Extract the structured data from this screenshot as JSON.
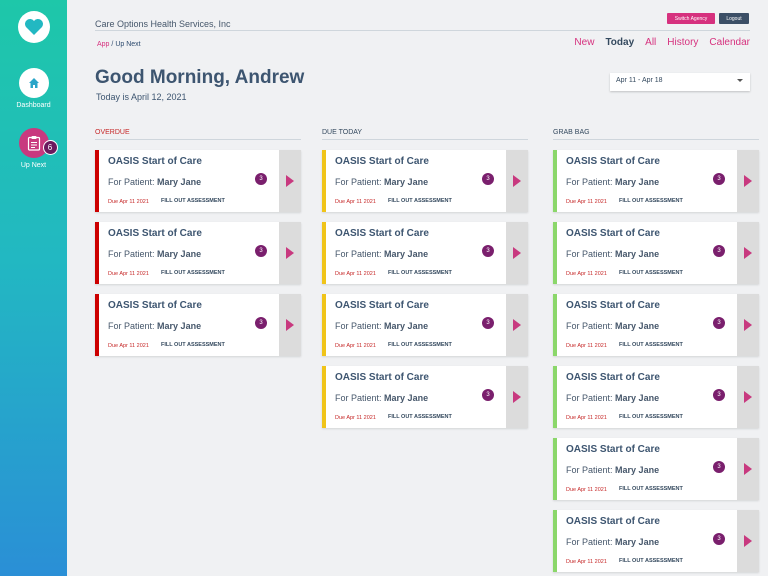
{
  "sidebar": {
    "dashboard_label": "Dashboard",
    "upnext_label": "Up Next",
    "upnext_badge": "6"
  },
  "header": {
    "agency": "Care Options Health Services, Inc",
    "switch_label": "Switch Agency",
    "logout_label": "Logout"
  },
  "breadcrumb": {
    "app": "App",
    "sep": " / ",
    "current": "Up Next"
  },
  "tabs": [
    "New",
    "Today",
    "All",
    "History",
    "Calendar"
  ],
  "active_tab": "Today",
  "greeting": "Good Morning, Andrew",
  "today_text": "Today is April 12, 2021",
  "date_range": "Apr 11 - Apr 18",
  "columns": [
    {
      "title": "OVERDUE",
      "color": "red",
      "count": 3
    },
    {
      "title": "DUE TODAY",
      "color": "yellow",
      "count": 4
    },
    {
      "title": "GRAB BAG",
      "color": "green",
      "count": 6
    }
  ],
  "card": {
    "title": "OASIS Start of Care",
    "patient_prefix": "For Patient:",
    "patient_name": "Mary Jane",
    "due": "Due Apr 11 2021",
    "action": "FILL OUT ASSESSMENT",
    "count": "3"
  },
  "colors": {
    "accent": "#d6317e",
    "overdue": "#c00000",
    "due_today": "#f0c419",
    "grab_bag": "#8bd76a"
  }
}
